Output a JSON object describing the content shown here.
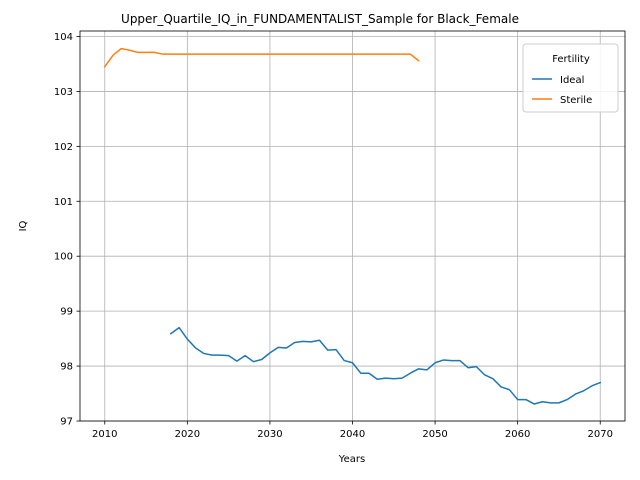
{
  "chart_data": {
    "type": "line",
    "title": "Upper_Quartile_IQ_in_FUNDAMENTALIST_Sample for Black_Female",
    "xlabel": "Years",
    "ylabel": "IQ",
    "xlim": [
      2007,
      2073
    ],
    "ylim": [
      97,
      104.1
    ],
    "xticks": [
      2010,
      2020,
      2030,
      2040,
      2050,
      2060,
      2070
    ],
    "yticks": [
      97,
      98,
      99,
      100,
      101,
      102,
      103,
      104
    ],
    "grid": true,
    "legend": {
      "title": "Fertility",
      "placement": "top-right"
    },
    "series": [
      {
        "name": "Ideal",
        "color": "#1f77b4",
        "x": [
          2018,
          2019,
          2020,
          2021,
          2022,
          2023,
          2024,
          2025,
          2026,
          2027,
          2028,
          2029,
          2030,
          2031,
          2032,
          2033,
          2034,
          2035,
          2036,
          2037,
          2038,
          2039,
          2040,
          2041,
          2042,
          2043,
          2044,
          2045,
          2046,
          2047,
          2048,
          2049,
          2050,
          2051,
          2052,
          2053,
          2054,
          2055,
          2056,
          2057,
          2058,
          2059,
          2060,
          2061,
          2062,
          2063,
          2064,
          2065,
          2066,
          2067,
          2068,
          2069,
          2070
        ],
        "y": [
          98.59,
          98.7,
          98.49,
          98.33,
          98.23,
          98.2,
          98.2,
          98.19,
          98.09,
          98.19,
          98.08,
          98.12,
          98.24,
          98.34,
          98.33,
          98.43,
          98.45,
          98.44,
          98.47,
          98.29,
          98.3,
          98.1,
          98.06,
          97.87,
          97.87,
          97.76,
          97.78,
          97.77,
          97.78,
          97.87,
          97.95,
          97.93,
          98.06,
          98.11,
          98.1,
          98.1,
          97.97,
          97.99,
          97.84,
          97.77,
          97.62,
          97.57,
          97.39,
          97.39,
          97.31,
          97.35,
          97.33,
          97.33,
          97.39,
          97.49,
          97.55,
          97.64,
          97.7
        ]
      },
      {
        "name": "Sterile",
        "color": "#ff7f0e",
        "x": [
          2010,
          2011,
          2012,
          2013,
          2014,
          2015,
          2016,
          2017,
          2018,
          2019,
          2020,
          2021,
          2022,
          2023,
          2024,
          2025,
          2026,
          2027,
          2028,
          2029,
          2030,
          2031,
          2032,
          2033,
          2034,
          2035,
          2036,
          2037,
          2038,
          2039,
          2040,
          2041,
          2042,
          2043,
          2044,
          2045,
          2046,
          2047,
          2048
        ],
        "y": [
          103.45,
          103.66,
          103.78,
          103.75,
          103.71,
          103.71,
          103.71,
          103.68,
          103.68,
          103.68,
          103.68,
          103.68,
          103.68,
          103.68,
          103.68,
          103.68,
          103.68,
          103.68,
          103.68,
          103.68,
          103.68,
          103.68,
          103.68,
          103.68,
          103.68,
          103.68,
          103.68,
          103.68,
          103.68,
          103.68,
          103.68,
          103.68,
          103.68,
          103.68,
          103.68,
          103.68,
          103.68,
          103.68,
          103.56
        ]
      }
    ]
  }
}
